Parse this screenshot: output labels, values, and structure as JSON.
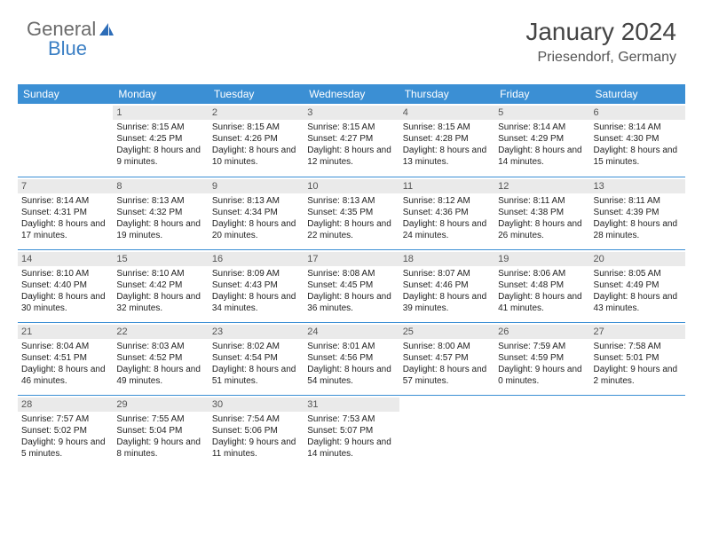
{
  "logo": {
    "general": "General",
    "blue": "Blue"
  },
  "header": {
    "month": "January 2024",
    "location": "Priesendorf, Germany"
  },
  "colors": {
    "header_bg": "#3b8fd4",
    "header_text": "#ffffff",
    "daynum_bg": "#eaeaea",
    "border": "#3b8fd4",
    "logo_blue": "#3b7fc4",
    "logo_gray": "#6b6b6b"
  },
  "weekdays": [
    "Sunday",
    "Monday",
    "Tuesday",
    "Wednesday",
    "Thursday",
    "Friday",
    "Saturday"
  ],
  "days": [
    null,
    {
      "n": "1",
      "sr": "8:15 AM",
      "ss": "4:25 PM",
      "dl": "8 hours and 9 minutes."
    },
    {
      "n": "2",
      "sr": "8:15 AM",
      "ss": "4:26 PM",
      "dl": "8 hours and 10 minutes."
    },
    {
      "n": "3",
      "sr": "8:15 AM",
      "ss": "4:27 PM",
      "dl": "8 hours and 12 minutes."
    },
    {
      "n": "4",
      "sr": "8:15 AM",
      "ss": "4:28 PM",
      "dl": "8 hours and 13 minutes."
    },
    {
      "n": "5",
      "sr": "8:14 AM",
      "ss": "4:29 PM",
      "dl": "8 hours and 14 minutes."
    },
    {
      "n": "6",
      "sr": "8:14 AM",
      "ss": "4:30 PM",
      "dl": "8 hours and 15 minutes."
    },
    {
      "n": "7",
      "sr": "8:14 AM",
      "ss": "4:31 PM",
      "dl": "8 hours and 17 minutes."
    },
    {
      "n": "8",
      "sr": "8:13 AM",
      "ss": "4:32 PM",
      "dl": "8 hours and 19 minutes."
    },
    {
      "n": "9",
      "sr": "8:13 AM",
      "ss": "4:34 PM",
      "dl": "8 hours and 20 minutes."
    },
    {
      "n": "10",
      "sr": "8:13 AM",
      "ss": "4:35 PM",
      "dl": "8 hours and 22 minutes."
    },
    {
      "n": "11",
      "sr": "8:12 AM",
      "ss": "4:36 PM",
      "dl": "8 hours and 24 minutes."
    },
    {
      "n": "12",
      "sr": "8:11 AM",
      "ss": "4:38 PM",
      "dl": "8 hours and 26 minutes."
    },
    {
      "n": "13",
      "sr": "8:11 AM",
      "ss": "4:39 PM",
      "dl": "8 hours and 28 minutes."
    },
    {
      "n": "14",
      "sr": "8:10 AM",
      "ss": "4:40 PM",
      "dl": "8 hours and 30 minutes."
    },
    {
      "n": "15",
      "sr": "8:10 AM",
      "ss": "4:42 PM",
      "dl": "8 hours and 32 minutes."
    },
    {
      "n": "16",
      "sr": "8:09 AM",
      "ss": "4:43 PM",
      "dl": "8 hours and 34 minutes."
    },
    {
      "n": "17",
      "sr": "8:08 AM",
      "ss": "4:45 PM",
      "dl": "8 hours and 36 minutes."
    },
    {
      "n": "18",
      "sr": "8:07 AM",
      "ss": "4:46 PM",
      "dl": "8 hours and 39 minutes."
    },
    {
      "n": "19",
      "sr": "8:06 AM",
      "ss": "4:48 PM",
      "dl": "8 hours and 41 minutes."
    },
    {
      "n": "20",
      "sr": "8:05 AM",
      "ss": "4:49 PM",
      "dl": "8 hours and 43 minutes."
    },
    {
      "n": "21",
      "sr": "8:04 AM",
      "ss": "4:51 PM",
      "dl": "8 hours and 46 minutes."
    },
    {
      "n": "22",
      "sr": "8:03 AM",
      "ss": "4:52 PM",
      "dl": "8 hours and 49 minutes."
    },
    {
      "n": "23",
      "sr": "8:02 AM",
      "ss": "4:54 PM",
      "dl": "8 hours and 51 minutes."
    },
    {
      "n": "24",
      "sr": "8:01 AM",
      "ss": "4:56 PM",
      "dl": "8 hours and 54 minutes."
    },
    {
      "n": "25",
      "sr": "8:00 AM",
      "ss": "4:57 PM",
      "dl": "8 hours and 57 minutes."
    },
    {
      "n": "26",
      "sr": "7:59 AM",
      "ss": "4:59 PM",
      "dl": "9 hours and 0 minutes."
    },
    {
      "n": "27",
      "sr": "7:58 AM",
      "ss": "5:01 PM",
      "dl": "9 hours and 2 minutes."
    },
    {
      "n": "28",
      "sr": "7:57 AM",
      "ss": "5:02 PM",
      "dl": "9 hours and 5 minutes."
    },
    {
      "n": "29",
      "sr": "7:55 AM",
      "ss": "5:04 PM",
      "dl": "9 hours and 8 minutes."
    },
    {
      "n": "30",
      "sr": "7:54 AM",
      "ss": "5:06 PM",
      "dl": "9 hours and 11 minutes."
    },
    {
      "n": "31",
      "sr": "7:53 AM",
      "ss": "5:07 PM",
      "dl": "9 hours and 14 minutes."
    },
    null,
    null,
    null
  ],
  "labels": {
    "sunrise": "Sunrise: ",
    "sunset": "Sunset: ",
    "daylight": "Daylight: "
  }
}
